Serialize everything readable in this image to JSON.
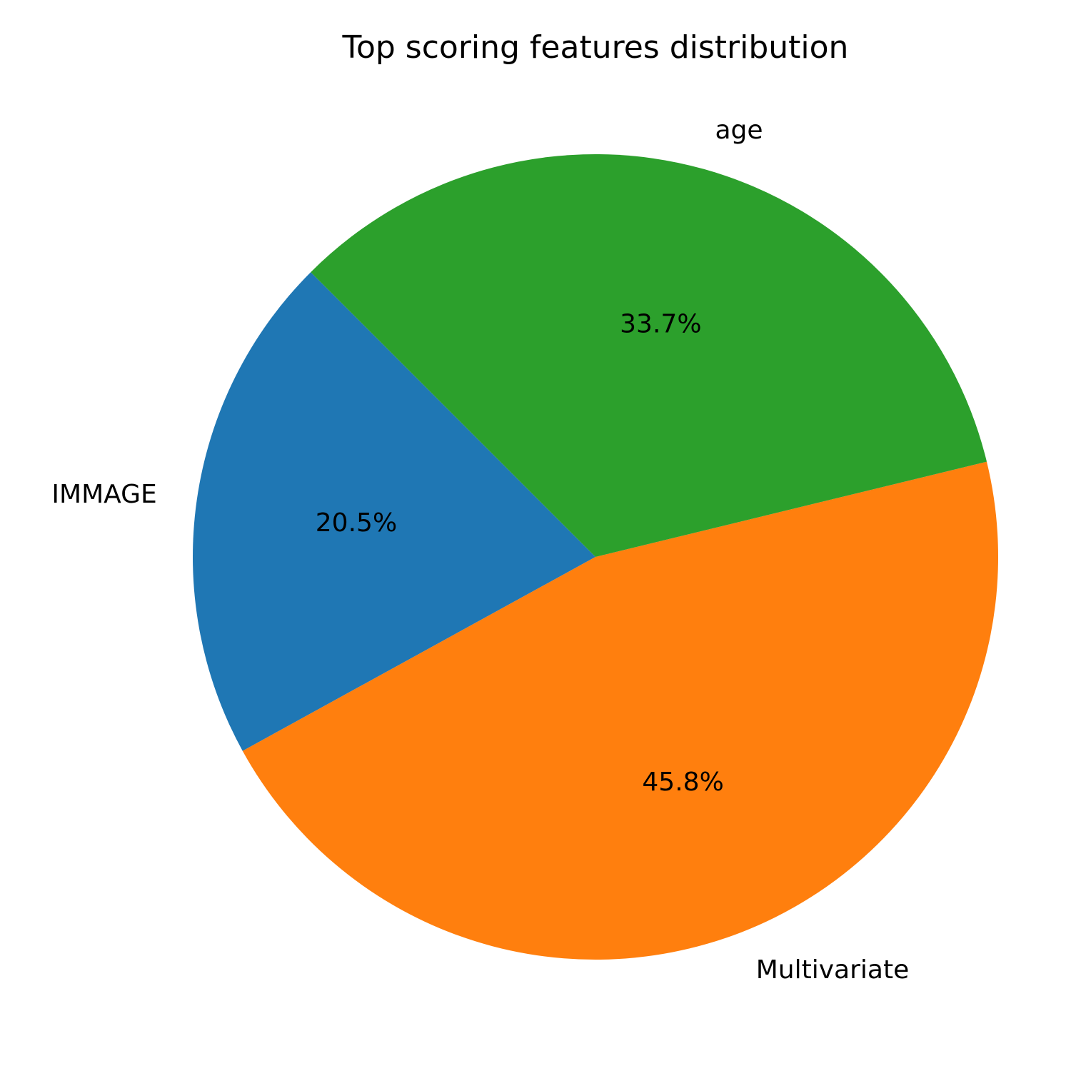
{
  "chart_data": {
    "type": "pie",
    "title": "Top scoring features distribution",
    "categories": [
      "IMMAGE",
      "Multivariate",
      "age"
    ],
    "values": [
      20.5,
      45.8,
      33.7
    ],
    "value_labels": [
      "20.5%",
      "45.8%",
      "33.7%"
    ],
    "colors": [
      "#1f77b4",
      "#ff7f0e",
      "#2ca02c"
    ],
    "start_angle_deg": 135,
    "direction": "counterclockwise",
    "legend": "none"
  }
}
